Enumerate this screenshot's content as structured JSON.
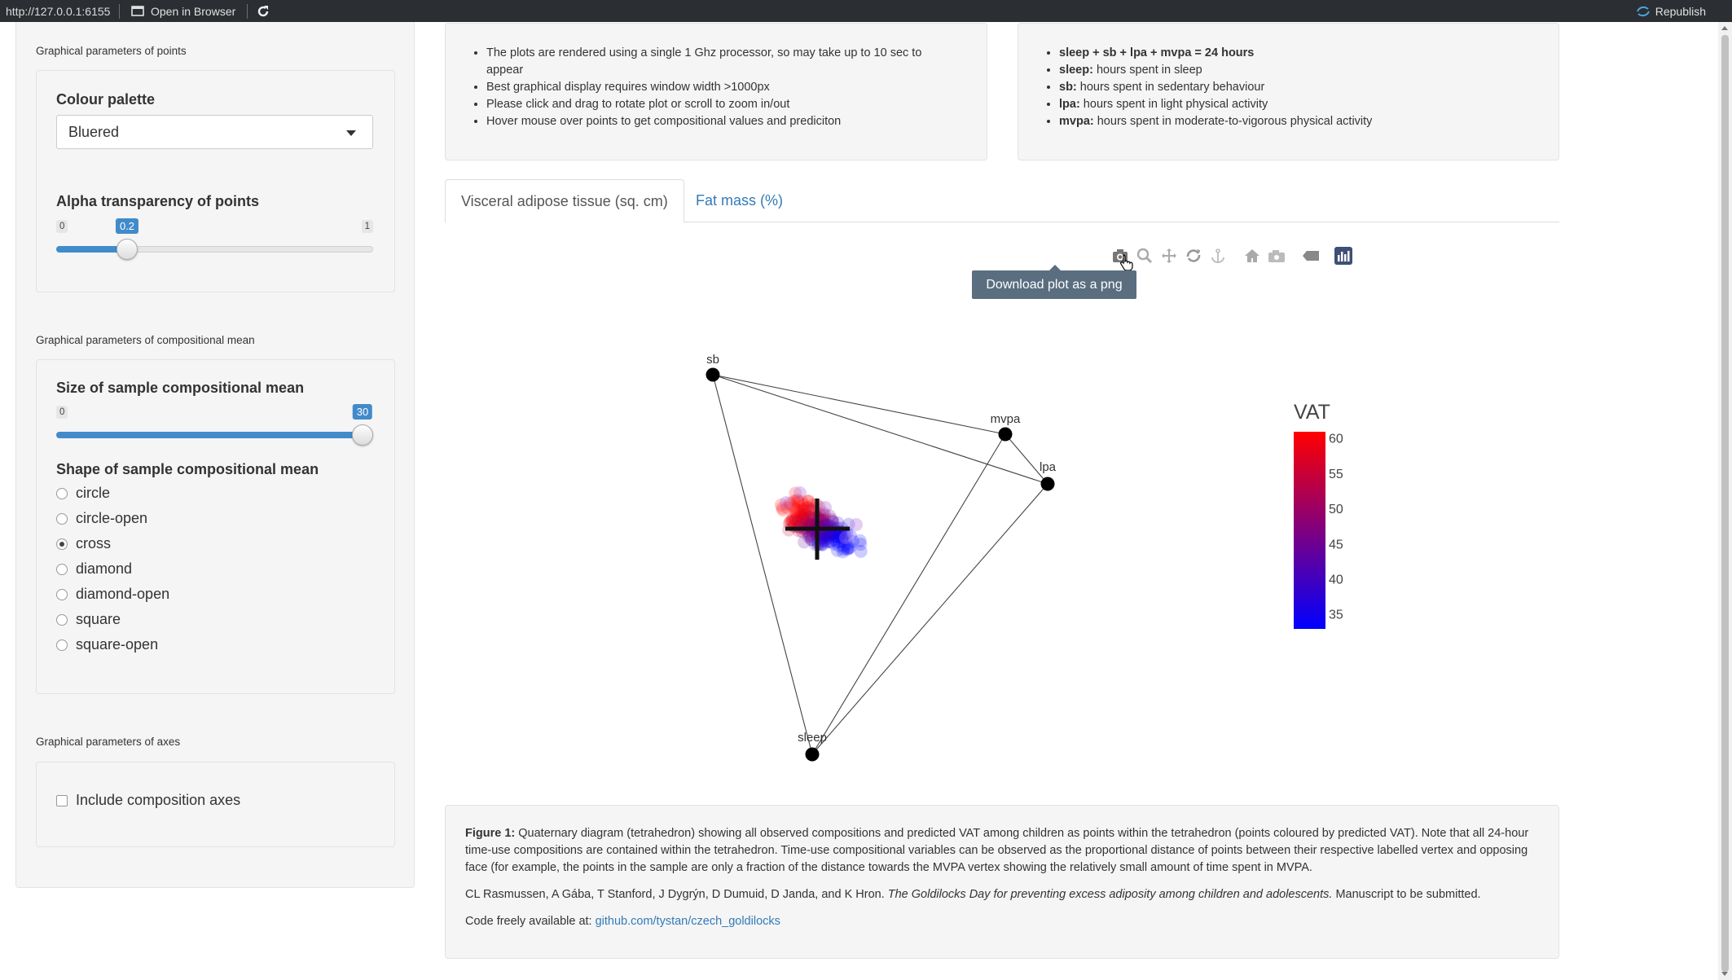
{
  "topbar": {
    "url": "http://127.0.0.1:6155",
    "open_in_browser": "Open in Browser",
    "republish": "Republish"
  },
  "sidebar": {
    "points_section": "Graphical parameters of points",
    "palette_label": "Colour palette",
    "palette_value": "Bluered",
    "alpha_label": "Alpha transparency of points",
    "alpha_min": "0",
    "alpha_max": "1",
    "alpha_value": "0.2",
    "mean_section": "Graphical parameters of compositional mean",
    "size_label": "Size of sample compositional mean",
    "size_min": "0",
    "size_value": "30",
    "shape_label": "Shape of sample compositional mean",
    "shapes": [
      "circle",
      "circle-open",
      "cross",
      "diamond",
      "diamond-open",
      "square",
      "square-open"
    ],
    "shape_selected": "cross",
    "axes_section": "Graphical parameters of axes",
    "axes_checkbox": "Include composition axes"
  },
  "info_left": {
    "items": [
      "The plots are rendered using a single 1 Ghz processor, so may take up to 10 sec to appear",
      "Best graphical display requires window width >1000px",
      "Please click and drag to rotate plot or scroll to zoom in/out",
      "Hover mouse over points to get compositional values and prediciton"
    ]
  },
  "info_right": {
    "items": [
      {
        "bold": "sleep + sb + lpa + mvpa = 24 hours",
        "text": ""
      },
      {
        "bold": "sleep:",
        "text": " hours spent in sleep"
      },
      {
        "bold": "sb:",
        "text": " hours spent in sedentary behaviour"
      },
      {
        "bold": "lpa:",
        "text": " hours spent in light physical activity"
      },
      {
        "bold": "mvpa:",
        "text": " hours spent in moderate-to-vigorous physical activity"
      }
    ]
  },
  "tabs": {
    "active": "Visceral adipose tissue (sq. cm)",
    "other": "Fat mass (%)"
  },
  "modebar": {
    "tooltip": "Download plot as a png",
    "icons": [
      "camera-icon",
      "zoom-icon",
      "pan-icon",
      "orbit-rotation-icon",
      "turntable-rotation-icon",
      "reset-camera-icon",
      "save-camera-icon",
      "toggle-hover-icon",
      "plotly-logo-icon"
    ]
  },
  "chart_data": {
    "type": "scatter",
    "vertices": [
      "sb",
      "mvpa",
      "lpa",
      "sleep"
    ],
    "colorbar": {
      "title": "VAT",
      "ticks": [
        60,
        55,
        50,
        45,
        40,
        35
      ],
      "range": [
        33,
        61
      ],
      "colors": [
        "#0000ff",
        "#ff0000"
      ]
    },
    "mean_marker": "cross",
    "mean_size": 30,
    "alpha": 0.2
  },
  "caption": {
    "fig_label": "Figure 1:",
    "fig_text": " Quaternary diagram (tetrahedron) showing all observed compositions and predicted VAT among children as points within the tetrahedron (points coloured by predicted VAT). Note that all 24-hour time-use compositions are contained within the tetrahedron. Time-use compositional variables can be observed as the proportional distance of points between their respective labelled vertex and opposing face (for example, the points in the sample are only a fraction of the distance towards the MVPA vertex showing the relatively small amount of time spent in MVPA.",
    "authors": "CL Rasmussen, A Gába, T Stanford, J Dygrýn, D Dumuid, D Janda, and K Hron. ",
    "title_italic": "The Goldilocks Day for preventing excess adiposity among children and adolescents.",
    "status": " Manuscript to be submitted.",
    "code_prefix": "Code freely available at: ",
    "code_link": "github.com/tystan/czech_goldilocks"
  }
}
